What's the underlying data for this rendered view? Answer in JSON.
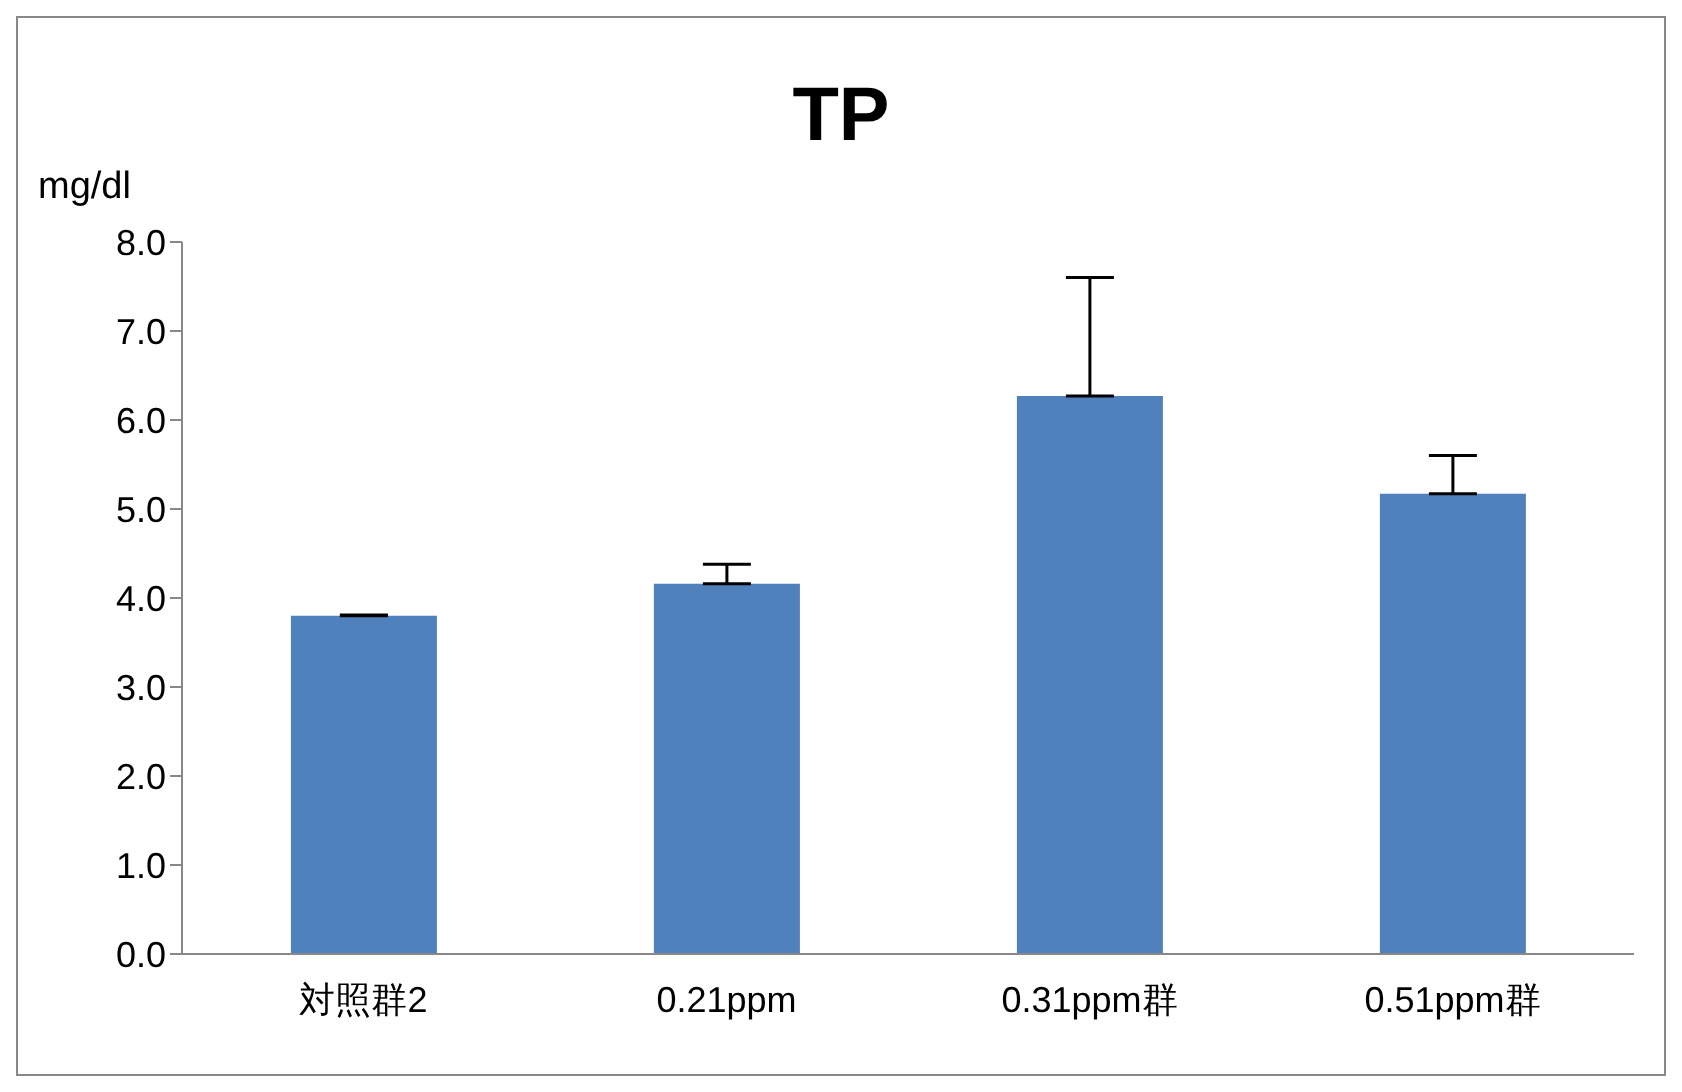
{
  "chart_data": {
    "type": "bar",
    "title": "TP",
    "ylabel": "mg/dl",
    "categories": [
      "対照群2",
      "0.21ppm",
      "0.31ppm群",
      "0.51ppm群"
    ],
    "values": [
      3.8,
      4.16,
      6.27,
      5.17
    ],
    "errors": [
      [
        3.8,
        3.81
      ],
      [
        4.16,
        4.38
      ],
      [
        6.27,
        7.6
      ],
      [
        5.17,
        5.6
      ]
    ],
    "color": "#4f81bd",
    "ylim": [
      0,
      8
    ],
    "yticks": [
      {
        "value": 0,
        "label": "0.0"
      },
      {
        "value": 1,
        "label": "1.0"
      },
      {
        "value": 2,
        "label": "2.0"
      },
      {
        "value": 3,
        "label": "3.0"
      },
      {
        "value": 4,
        "label": "4.0"
      },
      {
        "value": 5,
        "label": "5.0"
      },
      {
        "value": 6,
        "label": "6.0"
      },
      {
        "value": 7,
        "label": "7.0"
      },
      {
        "value": 8,
        "label": "8.0"
      }
    ],
    "grid": false,
    "legend": false
  }
}
